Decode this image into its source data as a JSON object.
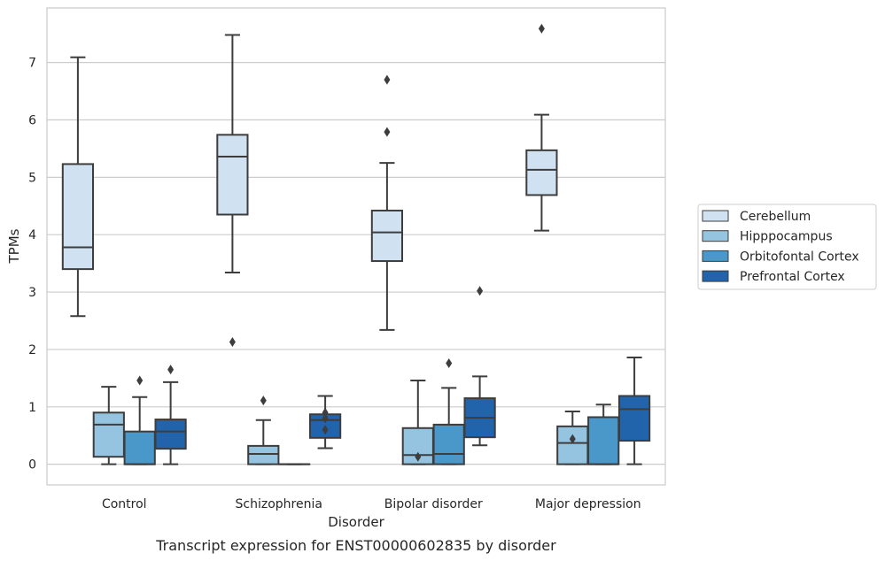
{
  "chart_data": {
    "type": "box",
    "caption": "Transcript expression for ENST00000602835 by disorder",
    "xlabel": "Disorder",
    "ylabel": "TPMs",
    "ylim": [
      -0.36,
      7.95
    ],
    "yticks": [
      0,
      1,
      2,
      3,
      4,
      5,
      6,
      7
    ],
    "grid": "horizontal",
    "legend_position": "right",
    "categories": [
      "Control",
      "Schizophrenia",
      "Bipolar disorder",
      "Major depression"
    ],
    "series": [
      {
        "name": "Cerebellum",
        "color": "#d0e1f2",
        "boxes": [
          {
            "whisker_low": 2.58,
            "q1": 3.4,
            "median": 3.78,
            "q3": 5.23,
            "whisker_high": 7.09,
            "outliers": []
          },
          {
            "whisker_low": 3.34,
            "q1": 4.35,
            "median": 5.36,
            "q3": 5.74,
            "whisker_high": 7.48,
            "outliers": [
              2.13
            ]
          },
          {
            "whisker_low": 2.34,
            "q1": 3.54,
            "median": 4.04,
            "q3": 4.42,
            "whisker_high": 5.25,
            "outliers": [
              5.79,
              6.7
            ]
          },
          {
            "whisker_low": 4.07,
            "q1": 4.69,
            "median": 5.13,
            "q3": 5.47,
            "whisker_high": 6.09,
            "outliers": [
              7.59
            ]
          }
        ]
      },
      {
        "name": "Hipppocampus",
        "color": "#94c4df",
        "boxes": [
          {
            "whisker_low": 0.0,
            "q1": 0.13,
            "median": 0.69,
            "q3": 0.9,
            "whisker_high": 1.35,
            "outliers": []
          },
          {
            "whisker_low": 0.0,
            "q1": 0.0,
            "median": 0.18,
            "q3": 0.32,
            "whisker_high": 0.77,
            "outliers": [
              1.11
            ]
          },
          {
            "whisker_low": 0.0,
            "q1": 0.0,
            "median": 0.16,
            "q3": 0.63,
            "whisker_high": 1.46,
            "outliers": [
              0.13
            ]
          },
          {
            "whisker_low": 0.0,
            "q1": 0.0,
            "median": 0.37,
            "q3": 0.66,
            "whisker_high": 0.92,
            "outliers": [
              0.44
            ]
          }
        ]
      },
      {
        "name": "Orbitofontal Cortex",
        "color": "#4a98c9",
        "boxes": [
          {
            "whisker_low": 0.0,
            "q1": 0.0,
            "median": 0.0,
            "q3": 0.57,
            "whisker_high": 1.17,
            "outliers": [
              1.46
            ]
          },
          {
            "whisker_low": 0.0,
            "q1": 0.0,
            "median": 0.0,
            "q3": 0.0,
            "whisker_high": 0.0,
            "outliers": []
          },
          {
            "whisker_low": 0.0,
            "q1": 0.0,
            "median": 0.18,
            "q3": 0.69,
            "whisker_high": 1.33,
            "outliers": [
              1.76
            ]
          },
          {
            "whisker_low": 0.0,
            "q1": 0.0,
            "median": 0.0,
            "q3": 0.82,
            "whisker_high": 1.04,
            "outliers": []
          }
        ]
      },
      {
        "name": "Prefrontal Cortex",
        "color": "#2164ab",
        "boxes": [
          {
            "whisker_low": 0.0,
            "q1": 0.27,
            "median": 0.57,
            "q3": 0.78,
            "whisker_high": 1.43,
            "outliers": [
              1.65
            ]
          },
          {
            "whisker_low": 0.28,
            "q1": 0.46,
            "median": 0.77,
            "q3": 0.87,
            "whisker_high": 1.19,
            "outliers": [
              0.6,
              0.8,
              0.9
            ]
          },
          {
            "whisker_low": 0.33,
            "q1": 0.47,
            "median": 0.81,
            "q3": 1.15,
            "whisker_high": 1.53,
            "outliers": [
              3.02
            ]
          },
          {
            "whisker_low": 0.0,
            "q1": 0.41,
            "median": 0.96,
            "q3": 1.19,
            "whisker_high": 1.86,
            "outliers": []
          }
        ]
      }
    ]
  }
}
